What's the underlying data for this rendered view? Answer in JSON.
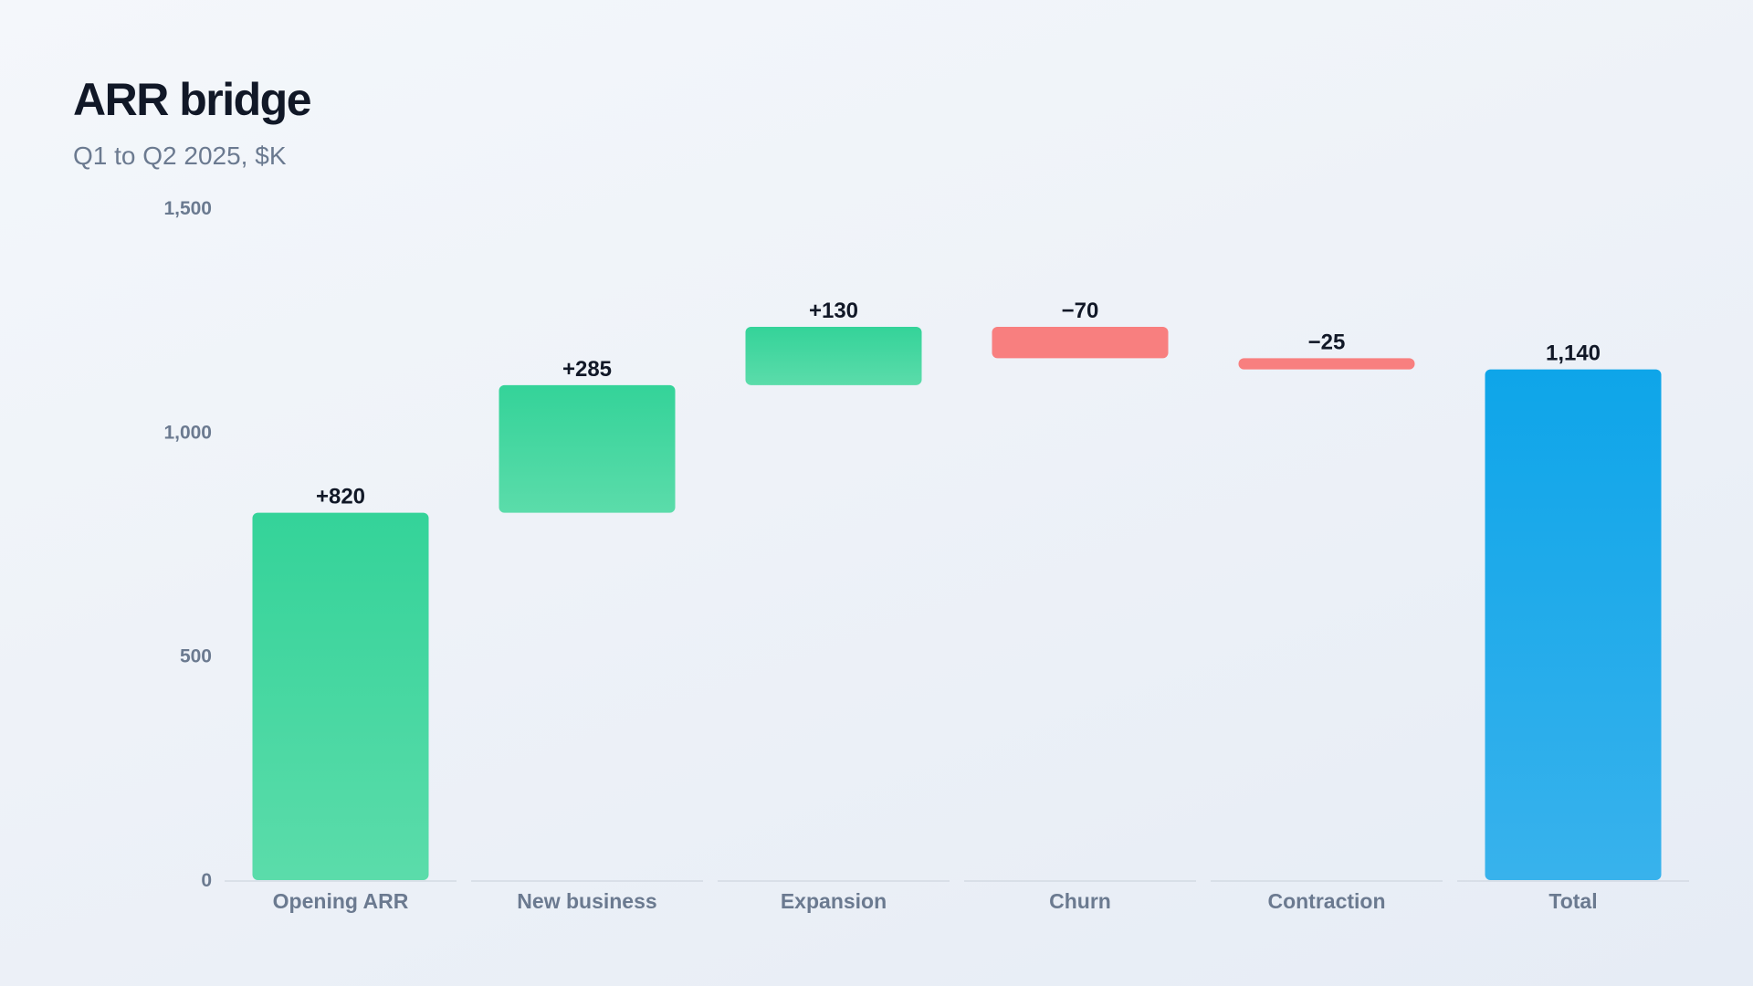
{
  "header": {
    "title": "ARR bridge",
    "subtitle": "Q1 to Q2 2025, $K"
  },
  "colors": {
    "increase_top": "#34d399",
    "increase_bottom": "#5bdcaa",
    "decrease": "#f87f7f",
    "total_top": "#0ea5e9",
    "total_bottom": "#38b2ec",
    "baseline": "#d3dae4"
  },
  "chart_data": {
    "type": "bar",
    "subtype": "waterfall",
    "title": "ARR bridge",
    "subtitle": "Q1 to Q2 2025, $K",
    "ylim": [
      0,
      1500
    ],
    "yticks": [
      0,
      500,
      1000,
      1500
    ],
    "ytick_labels": [
      "0",
      "500",
      "1,000",
      "1,500"
    ],
    "grid": false,
    "categories": [
      "Opening ARR",
      "New business",
      "Expansion",
      "Churn",
      "Contraction",
      "Total"
    ],
    "bars": [
      {
        "category": "Opening ARR",
        "kind": "increase",
        "start": 0,
        "end": 820,
        "label": "+820"
      },
      {
        "category": "New business",
        "kind": "increase",
        "start": 820,
        "end": 1105,
        "label": "+285"
      },
      {
        "category": "Expansion",
        "kind": "increase",
        "start": 1105,
        "end": 1235,
        "label": "+130"
      },
      {
        "category": "Churn",
        "kind": "decrease",
        "start": 1235,
        "end": 1165,
        "label": "−70"
      },
      {
        "category": "Contraction",
        "kind": "decrease",
        "start": 1165,
        "end": 1140,
        "label": "−25"
      },
      {
        "category": "Total",
        "kind": "total",
        "start": 0,
        "end": 1140,
        "label": "1,140"
      }
    ]
  }
}
